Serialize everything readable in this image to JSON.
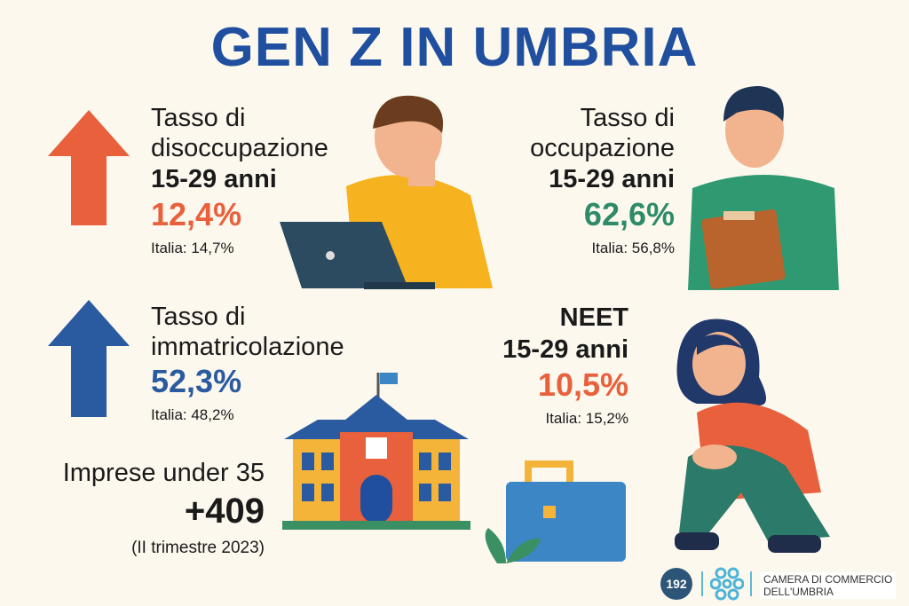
{
  "title": "GEN Z IN UMBRIA",
  "colors": {
    "title": "#1f4f9e",
    "orange": "#e8603c",
    "green": "#2e8b68",
    "blue": "#2a5aa0",
    "background": "#fcf8ee"
  },
  "stats": {
    "disoccupazione": {
      "line1": "Tasso di",
      "line2": "disoccupazione",
      "age": "15-29 anni",
      "value": "12,4%",
      "italia": "Italia: 14,7%",
      "icon": "arrow-up-icon"
    },
    "occupazione": {
      "line1": "Tasso di",
      "line2": "occupazione",
      "age": "15-29 anni",
      "value": "62,6%",
      "italia": "Italia: 56,8%"
    },
    "immatricolazione": {
      "line1": "Tasso di",
      "line2": "immatricolazione",
      "value": "52,3%",
      "italia": "Italia: 48,2%",
      "icon": "arrow-up-icon"
    },
    "neet": {
      "line1": "NEET",
      "age": "15-29 anni",
      "value": "10,5%",
      "italia": "Italia: 15,2%"
    },
    "imprese": {
      "label": "Imprese under 35",
      "value": "+409",
      "period": "(II trimestre 2023)"
    }
  },
  "footer": {
    "badge": "192",
    "org_line1": "CAMERA DI COMMERCIO",
    "org_line2": "DELL'UMBRIA"
  }
}
